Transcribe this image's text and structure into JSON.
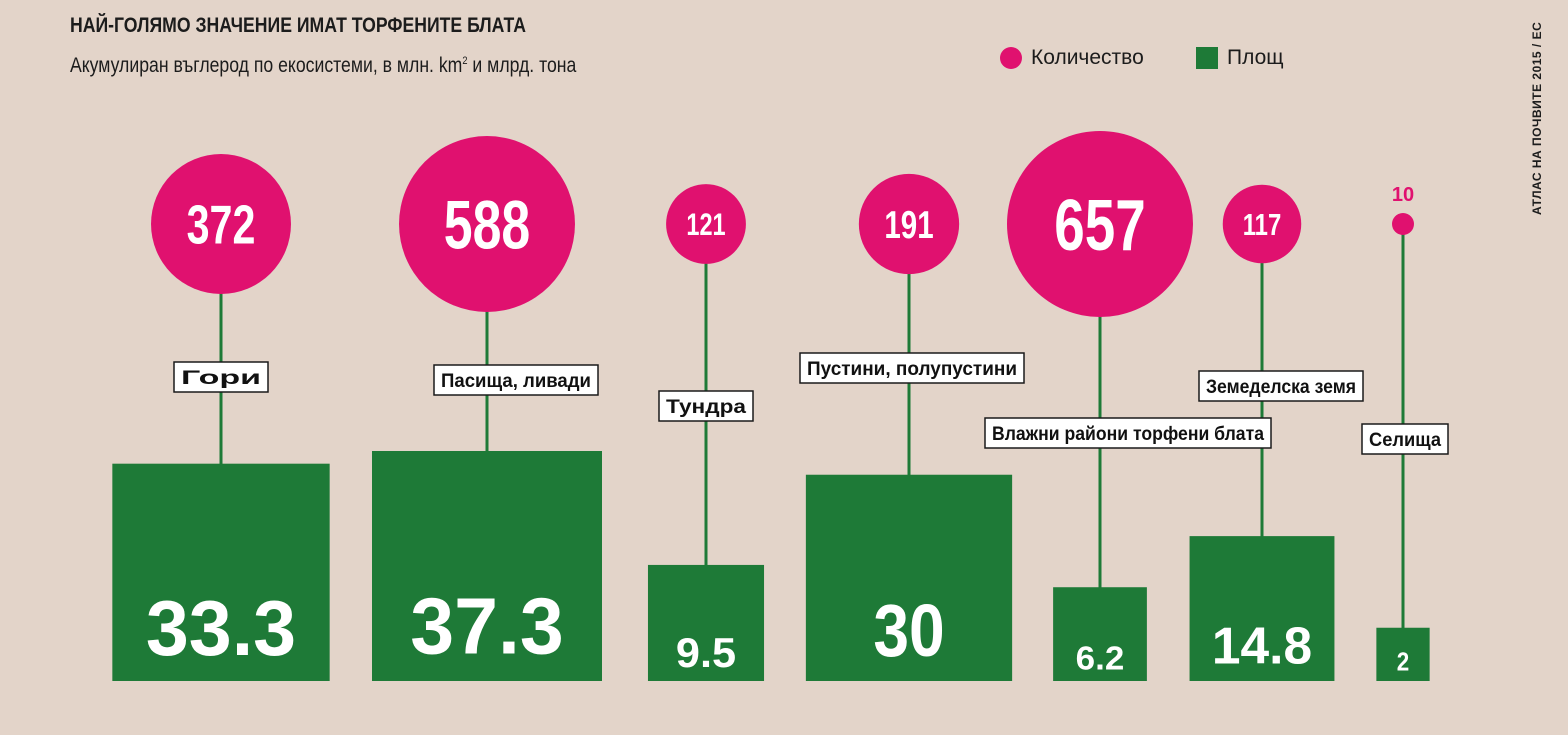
{
  "chart_data": {
    "type": "bar",
    "title": "НАЙ-ГОЛЯМО ЗНАЧЕНИЕ ИМАТ ТОРФЕНИТЕ БЛАТА",
    "subtitle": "Акумулиран въглерод по екосистеми, в млн. km",
    "subtitle_sup": "2",
    "subtitle_tail": " и млрд. тона",
    "categories": [
      "Гори",
      "Пасища, ливади",
      "Тундра",
      "Пустини, полупустини",
      "Влажни райони торфени блата",
      "Земеделска земя",
      "Селища"
    ],
    "series": [
      {
        "name": "Количество",
        "shape": "circle",
        "color": "#e0116f",
        "values": [
          372,
          588,
          121,
          191,
          657,
          117,
          10
        ]
      },
      {
        "name": "Площ",
        "shape": "square",
        "color": "#1e7a37",
        "values": [
          33.3,
          37.3,
          9.5,
          30,
          6.2,
          14.8,
          2
        ]
      }
    ],
    "value_labels_circle": [
      "372",
      "588",
      "121",
      "191",
      "657",
      "117",
      "10"
    ],
    "value_labels_square": [
      "33.3",
      "37.3",
      "9.5",
      "30",
      "6.2",
      "14.8",
      "2"
    ],
    "legend_position": "top-right",
    "grid": false
  },
  "credit": "АТЛАС НА ПОЧВИТЕ 2015 / ЕС",
  "colors": {
    "background": "#e3d4c9",
    "circle": "#e0116f",
    "square": "#1e7a37",
    "stem": "#1e7a37",
    "text": "#1c1c1c"
  }
}
